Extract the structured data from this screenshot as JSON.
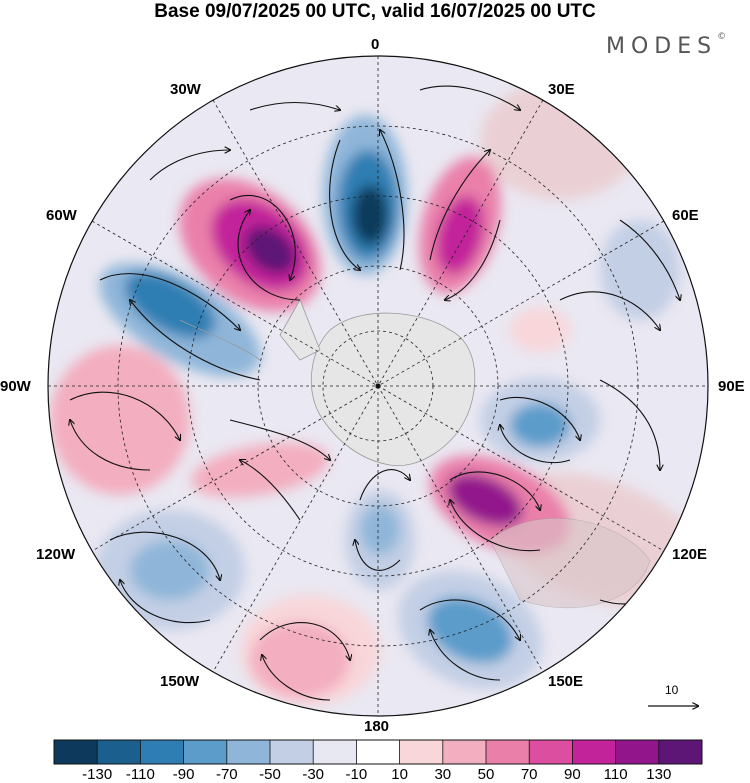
{
  "title": "Base 09/07/2025 00 UTC, valid 16/07/2025 00 UTC",
  "brand": "MODES",
  "brand_mark": "©",
  "longitude_labels": {
    "top": "0",
    "top_right": "30E",
    "upper_right": "60E",
    "right": "90E",
    "lower_right": "120E",
    "bottom_right": "150E",
    "bottom": "180",
    "bottom_left": "150W",
    "lower_left": "120W",
    "left": "90W",
    "upper_left": "60W",
    "top_left": "30W"
  },
  "reference_vector": {
    "label": "10",
    "icon": "arrow-right-icon"
  },
  "colorbar": {
    "colors": [
      "#0d3a5c",
      "#1a5f8e",
      "#2f7eb3",
      "#5b9ccb",
      "#8fb6d9",
      "#c3cfe5",
      "#e8e8f2",
      "#ffffff",
      "#f8d6d9",
      "#f3aebf",
      "#ea80aa",
      "#dc4fa0",
      "#c2239a",
      "#92158c",
      "#5d1676"
    ],
    "tick_labels": [
      "-130",
      "-110",
      "-90",
      "-70",
      "-50",
      "-30",
      "-10",
      "10",
      "30",
      "50",
      "70",
      "90",
      "110",
      "130"
    ]
  }
}
